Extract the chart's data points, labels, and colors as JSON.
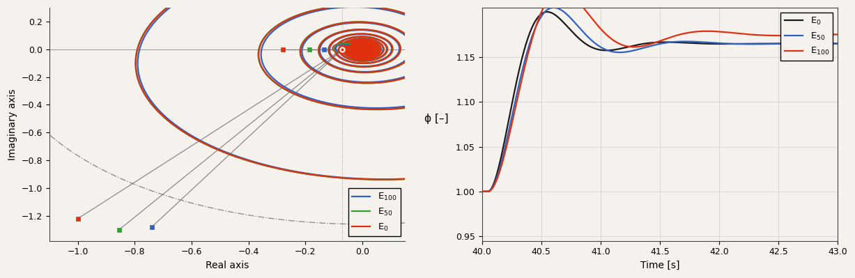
{
  "fig_width": 12.27,
  "fig_height": 3.99,
  "dpi": 100,
  "left_xlim": [
    -1.1,
    0.15
  ],
  "left_ylim": [
    -1.38,
    0.3
  ],
  "left_xlabel": "Real axis",
  "left_ylabel": "Imaginary axis",
  "left_xticks": [
    -1.0,
    -0.8,
    -0.6,
    -0.4,
    -0.2,
    0.0
  ],
  "left_yticks": [
    -1.2,
    -1.0,
    -0.8,
    -0.6,
    -0.4,
    -0.2,
    0.0,
    0.2
  ],
  "right_xlim": [
    40.0,
    43.0
  ],
  "right_ylim": [
    0.945,
    1.205
  ],
  "right_xlabel": "Time [s]",
  "right_ylabel": "ϕ [–]",
  "right_xticks": [
    40.0,
    40.5,
    41.0,
    41.5,
    42.0,
    42.5,
    43.0
  ],
  "right_yticks": [
    0.95,
    1.0,
    1.05,
    1.1,
    1.15
  ],
  "color_blue": "#3060C0",
  "color_green": "#30A030",
  "color_red": "#E03010",
  "color_black": "#1a1a1a",
  "color_gray": "#777777",
  "bg_color": "#f5f2ee"
}
